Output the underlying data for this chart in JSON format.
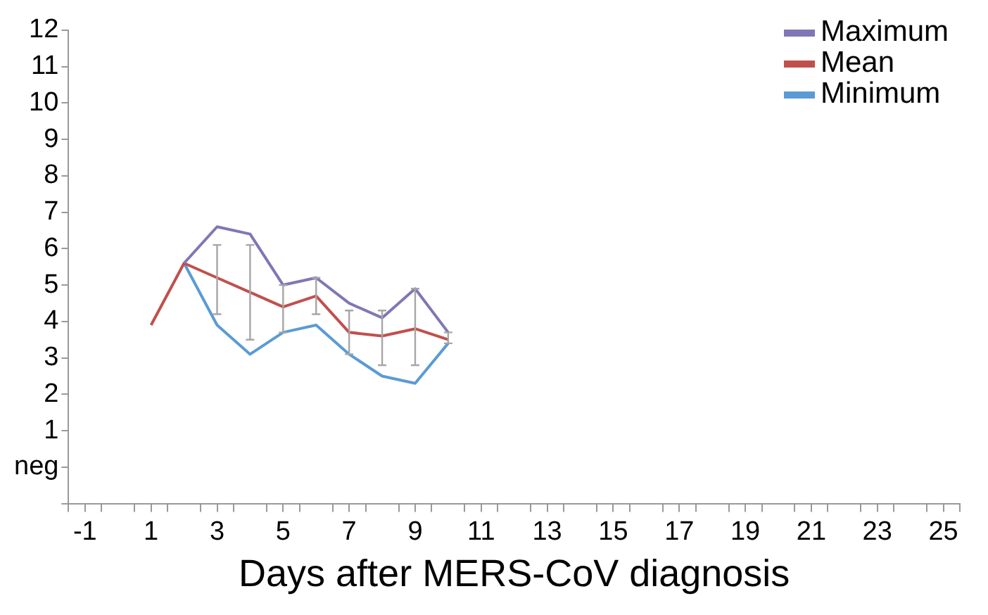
{
  "chart_data": {
    "type": "line",
    "xlabel": "Days after MERS-CoV diagnosis",
    "xlim": [
      -1.5,
      25.5
    ],
    "xticks": [
      -1,
      1,
      3,
      5,
      7,
      9,
      11,
      13,
      15,
      17,
      19,
      21,
      23,
      25,
      {
        "value": -1.5,
        "label": null
      },
      {
        "value": -0.5,
        "label": null
      },
      {
        "value": 0.5,
        "label": null
      },
      {
        "value": 1.5,
        "label": null
      },
      {
        "value": 2.5,
        "label": null
      },
      {
        "value": 3.5,
        "label": null
      },
      {
        "value": 4.5,
        "label": null
      },
      {
        "value": 5.5,
        "label": null
      },
      {
        "value": 6.5,
        "label": null
      },
      {
        "value": 7.5,
        "label": null
      },
      {
        "value": 8.5,
        "label": null
      },
      {
        "value": 9.5,
        "label": null
      },
      {
        "value": 10.5,
        "label": null
      },
      {
        "value": 11.5,
        "label": null
      },
      {
        "value": 12.5,
        "label": null
      },
      {
        "value": 13.5,
        "label": null
      },
      {
        "value": 14.5,
        "label": null
      },
      {
        "value": 15.5,
        "label": null
      },
      {
        "value": 16.5,
        "label": null
      },
      {
        "value": 17.5,
        "label": null
      },
      {
        "value": 18.5,
        "label": null
      },
      {
        "value": 19.5,
        "label": null
      },
      {
        "value": 20.5,
        "label": null
      },
      {
        "value": 21.5,
        "label": null
      },
      {
        "value": 22.5,
        "label": null
      },
      {
        "value": 23.5,
        "label": null
      },
      {
        "value": 24.5,
        "label": null
      },
      {
        "value": 25.5,
        "label": null
      }
    ],
    "ylim": [
      -1,
      12
    ],
    "yticks": [
      {
        "value": -1,
        "label": null
      },
      {
        "value": 0,
        "label": "neg"
      },
      1,
      2,
      3,
      4,
      5,
      6,
      7,
      8,
      9,
      10,
      11,
      12
    ],
    "grid": false,
    "legend": "top right",
    "marker": "none",
    "line_style": "solid",
    "series": [
      {
        "name": "Maximum",
        "color": "#7f77b5",
        "x": [
          2,
          3,
          4,
          5,
          6,
          7,
          8,
          9,
          10
        ],
        "values": [
          5.6,
          6.6,
          6.4,
          5.0,
          5.2,
          4.5,
          4.1,
          4.9,
          3.7
        ]
      },
      {
        "name": "Mean",
        "color": "#c0504d",
        "x": [
          1,
          2,
          3,
          4,
          5,
          6,
          7,
          8,
          9,
          10
        ],
        "values": [
          3.9,
          5.6,
          5.2,
          4.8,
          4.4,
          4.7,
          3.7,
          3.6,
          3.8,
          3.5
        ],
        "errors": [
          null,
          null,
          [
            4.2,
            6.1
          ],
          [
            3.5,
            6.1
          ],
          [
            3.7,
            5.0
          ],
          [
            4.2,
            5.2
          ],
          [
            3.1,
            4.3
          ],
          [
            2.8,
            4.3
          ],
          [
            2.8,
            4.9
          ],
          [
            3.4,
            3.7
          ]
        ]
      },
      {
        "name": "Minimum",
        "color": "#5b9bd5",
        "x": [
          2,
          3,
          4,
          5,
          6,
          7,
          8,
          9,
          10
        ],
        "values": [
          5.6,
          3.9,
          3.1,
          3.7,
          3.9,
          3.1,
          2.5,
          2.3,
          3.4
        ]
      }
    ]
  }
}
